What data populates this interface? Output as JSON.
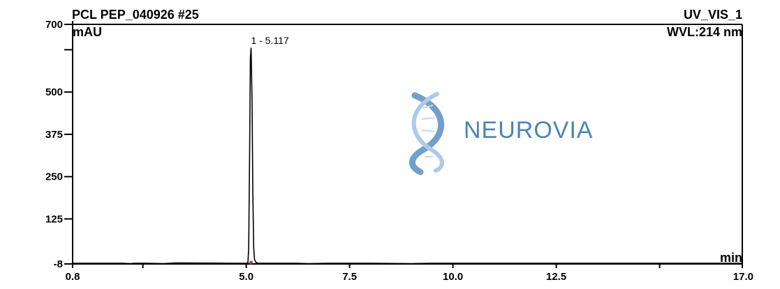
{
  "chart_data": {
    "type": "line",
    "title": "PCL PEP_040926 #25",
    "channel": "UV_VIS_1",
    "wavelength": "WVL:214 nm",
    "ylabel": "mAU",
    "xlabel": "min",
    "xlim": [
      0.8,
      17.0
    ],
    "ylim": [
      -8,
      700
    ],
    "x_ticks": [
      {
        "value": 0.8,
        "label": "0.8"
      },
      {
        "value": 5.0,
        "label": "5.0"
      },
      {
        "value": 7.5,
        "label": "7.5"
      },
      {
        "value": 10.0,
        "label": "10.0"
      },
      {
        "value": 12.5,
        "label": "12.5"
      },
      {
        "value": 17.0,
        "label": "17.0"
      }
    ],
    "x_minor_ticks": [
      2.5,
      15.0
    ],
    "y_ticks": [
      {
        "value": -8,
        "label": "-8"
      },
      {
        "value": 125,
        "label": "125"
      },
      {
        "value": 250,
        "label": "250"
      },
      {
        "value": 375,
        "label": "375"
      },
      {
        "value": 500,
        "label": "500"
      },
      {
        "value": 700,
        "label": "700"
      }
    ],
    "y_minor_ticks": [
      625
    ],
    "series": [
      {
        "color": "#000000",
        "x": [
          0.8,
          2.0,
          2.2,
          2.3,
          2.6,
          3.0,
          3.3,
          4.8,
          5.0,
          5.04,
          5.06,
          5.08,
          5.1,
          5.117,
          5.14,
          5.16,
          5.18,
          5.2,
          5.24,
          5.3,
          5.4,
          6.2,
          6.5,
          7.0,
          8.0,
          9.0,
          9.5,
          10.0,
          11.0,
          12.0,
          14.0,
          16.0,
          17.0
        ],
        "y": [
          -6,
          -6,
          -7,
          -6,
          -6,
          -7,
          -5,
          -6,
          -6,
          -5,
          40,
          300,
          600,
          630,
          480,
          200,
          40,
          5,
          -4,
          -6,
          -6,
          -6,
          -7,
          -6,
          -6,
          -7,
          -6,
          -6,
          -6,
          -6,
          -6,
          -6,
          -6
        ]
      }
    ],
    "peaks": [
      {
        "label": "1 - 5.117",
        "x": 5.117,
        "y": 630
      }
    ],
    "grid": false
  },
  "watermark": {
    "text": "NEUROVIA",
    "logo": "dna-helix-icon"
  }
}
